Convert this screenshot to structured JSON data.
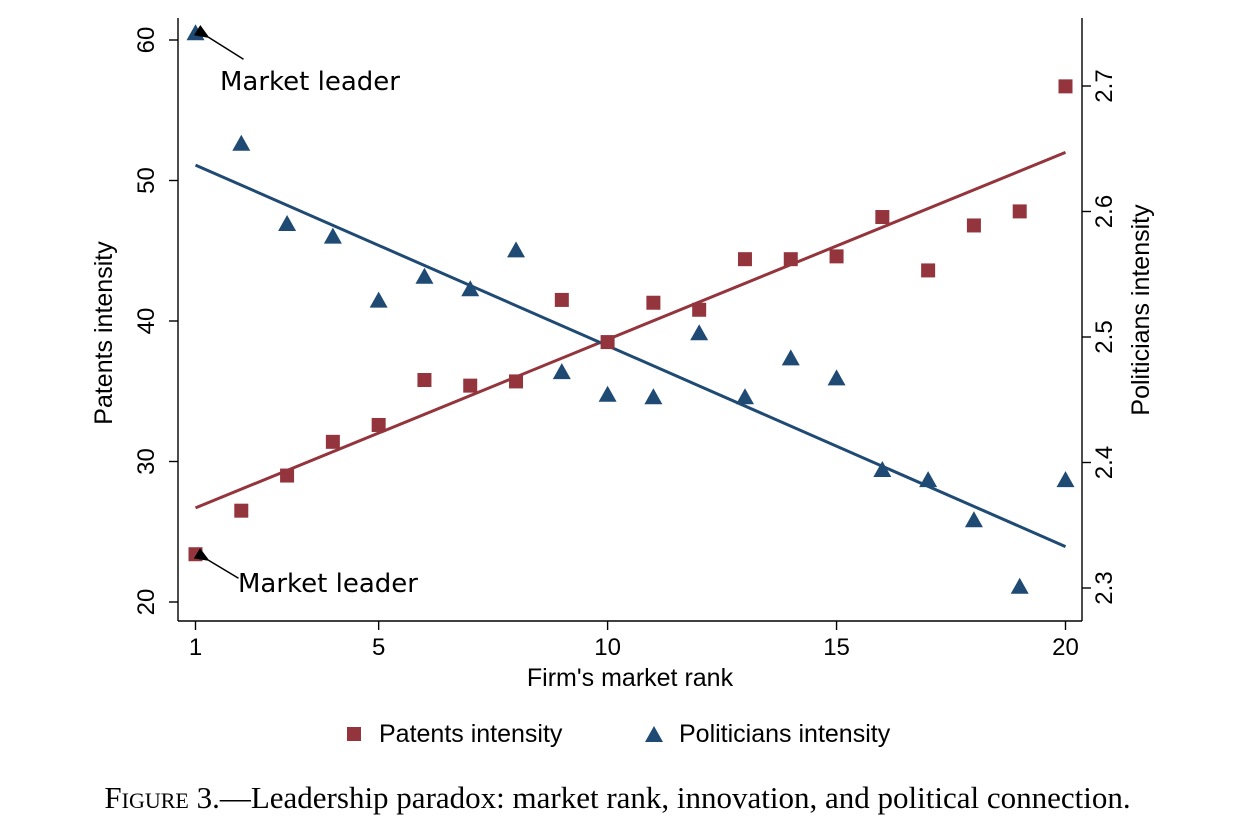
{
  "chart_data": {
    "type": "scatter",
    "xlabel": "Firm's market rank",
    "ylabel_left": "Patents intensity",
    "ylabel_right": "Politicians intensity",
    "xlim": [
      0.5,
      20.4
    ],
    "ylim_left": [
      19,
      61
    ],
    "ylim_right": [
      2.28,
      2.76
    ],
    "x_ticks": [
      1,
      5,
      10,
      15,
      20
    ],
    "y_ticks_left": [
      20,
      30,
      40,
      50,
      60
    ],
    "y_ticks_right": [
      2.3,
      2.4,
      2.5,
      2.6,
      2.7
    ],
    "grid": false,
    "legend_position": "bottom",
    "series": [
      {
        "name": "Patents intensity",
        "axis": "left",
        "marker": "square",
        "color": "#94353d",
        "x": [
          1,
          2,
          3,
          4,
          5,
          6,
          7,
          8,
          9,
          10,
          11,
          12,
          13,
          14,
          15,
          16,
          17,
          18,
          19,
          20
        ],
        "values": [
          23.4,
          26.5,
          29.0,
          31.4,
          32.6,
          35.8,
          35.4,
          35.7,
          41.5,
          38.5,
          41.3,
          40.8,
          44.4,
          44.4,
          44.6,
          47.4,
          43.6,
          46.8,
          47.8,
          56.7
        ],
        "fit": {
          "x": [
            1,
            20
          ],
          "y": [
            26.7,
            52.0
          ]
        }
      },
      {
        "name": "Politicians intensity",
        "axis": "right",
        "marker": "triangle",
        "color": "#1f4a73",
        "x": [
          1,
          2,
          3,
          4,
          5,
          6,
          7,
          8,
          9,
          10,
          11,
          12,
          13,
          14,
          15,
          16,
          17,
          18,
          19,
          20
        ],
        "values": [
          2.742,
          2.654,
          2.59,
          2.58,
          2.529,
          2.548,
          2.538,
          2.569,
          2.472,
          2.454,
          2.452,
          2.503,
          2.452,
          2.483,
          2.467,
          2.394,
          2.386,
          2.354,
          2.301,
          2.386
        ],
        "fit": {
          "x": [
            1,
            20
          ],
          "y": [
            2.637,
            2.333
          ]
        }
      }
    ],
    "annotations": [
      {
        "text": "Market leader",
        "series": "Politicians intensity",
        "x": 1,
        "y": 2.742
      },
      {
        "text": "Market leader",
        "series": "Patents intensity",
        "x": 1,
        "y": 23.4
      }
    ]
  },
  "caption": {
    "label": "Figure 3.",
    "text": "—Leadership paradox: market rank, innovation, and political connection."
  }
}
